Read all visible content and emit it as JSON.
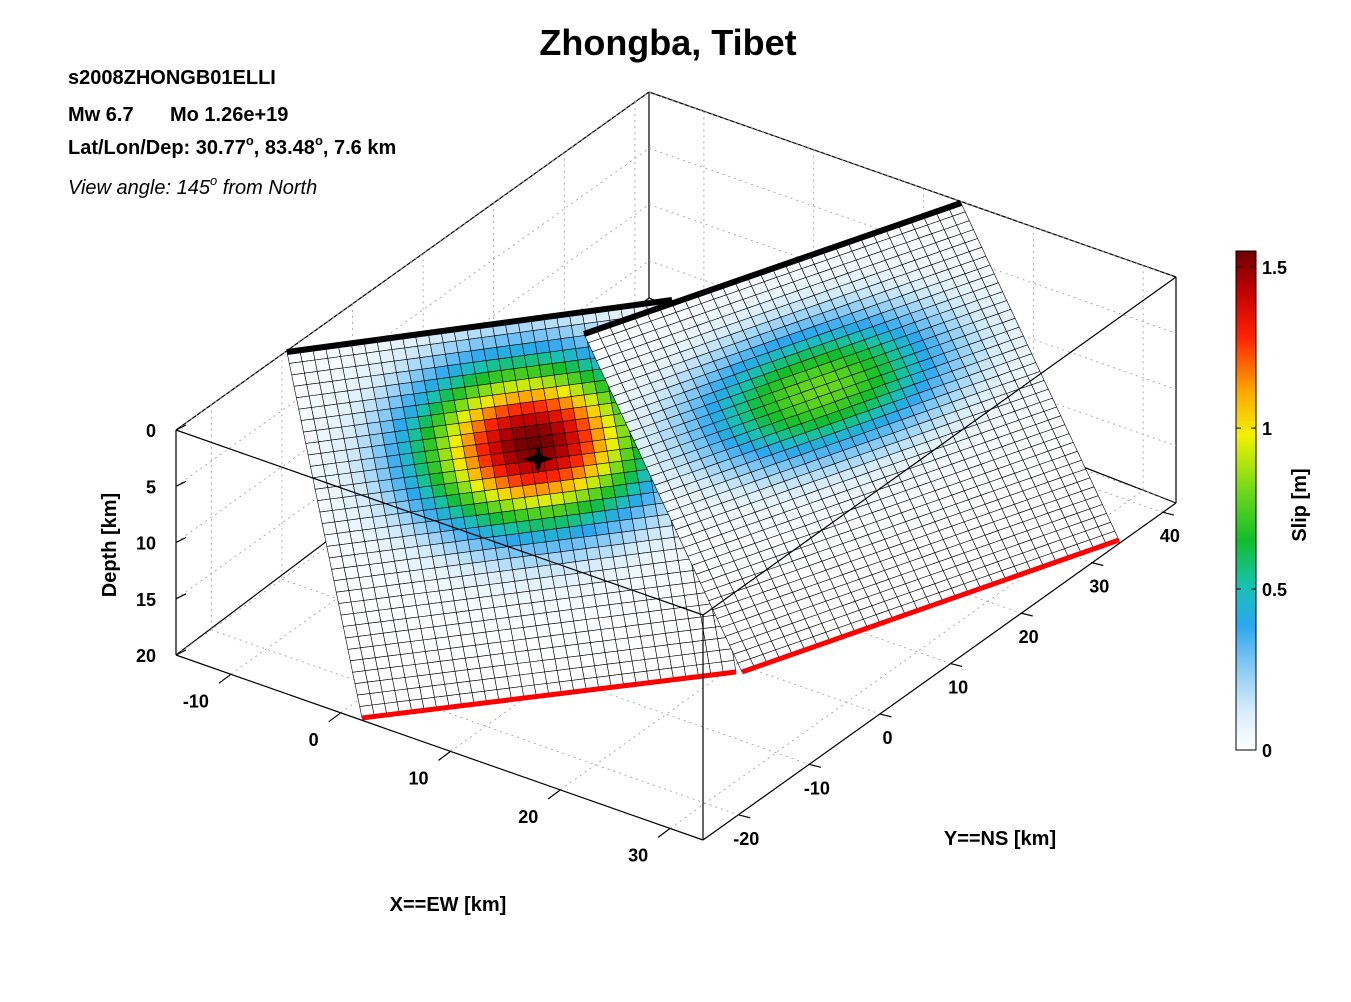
{
  "chart_data": {
    "type": "heatmap",
    "subtype": "3d-fault-slip-surface",
    "title": "Zhongba, Tibet",
    "event_id": "s2008ZHONGB01ELLI",
    "magnitude_label": "Mw 6.7",
    "moment_label": "Mo 1.26e+19",
    "location_label": "Lat/Lon/Dep: 30.77",
    "location_lon": ", 83.48",
    "location_dep": ", 7.6 km",
    "degree_sup": "o",
    "view_label": "View angle: 145",
    "view_suffix": " from North",
    "xlabel": "X==EW [km]",
    "ylabel": "Y==NS [km]",
    "zlabel": "Depth [km]",
    "colorbar_label": "Slip [m]",
    "x_ticks": [
      "-10",
      "0",
      "10",
      "20",
      "30"
    ],
    "y_ticks": [
      "-20",
      "-10",
      "0",
      "10",
      "20",
      "30",
      "40"
    ],
    "z_ticks": [
      "0",
      "5",
      "10",
      "15",
      "20"
    ],
    "colorbar_ticks": [
      "0",
      "0.5",
      "1",
      "1.5"
    ],
    "xlim": [
      -15,
      33
    ],
    "ylim": [
      -25,
      42
    ],
    "zlim": [
      0,
      20
    ],
    "clim": [
      0,
      1.55
    ],
    "hypocenter": {
      "depth_km": 7.6,
      "marker": "star"
    },
    "segments": [
      {
        "name": "",
        "grid_columns": 30,
        "grid_rows": 32,
        "peak_slip": 1.55,
        "peak_position": [
          0.58,
          0.33
        ],
        "slip_extent": [
          0.3,
          0.22
        ],
        "top_trace_color": "#000000",
        "bottom_trace_color": "#ff0000"
      },
      {
        "name": "",
        "grid_columns": 30,
        "grid_rows": 38,
        "peak_slip": 0.8,
        "peak_position": [
          0.48,
          0.35
        ],
        "slip_extent": [
          0.33,
          0.18
        ],
        "top_trace_color": "#000000",
        "bottom_trace_color": "#ff0000"
      }
    ],
    "grid": true,
    "legend": "colorbar-right"
  }
}
